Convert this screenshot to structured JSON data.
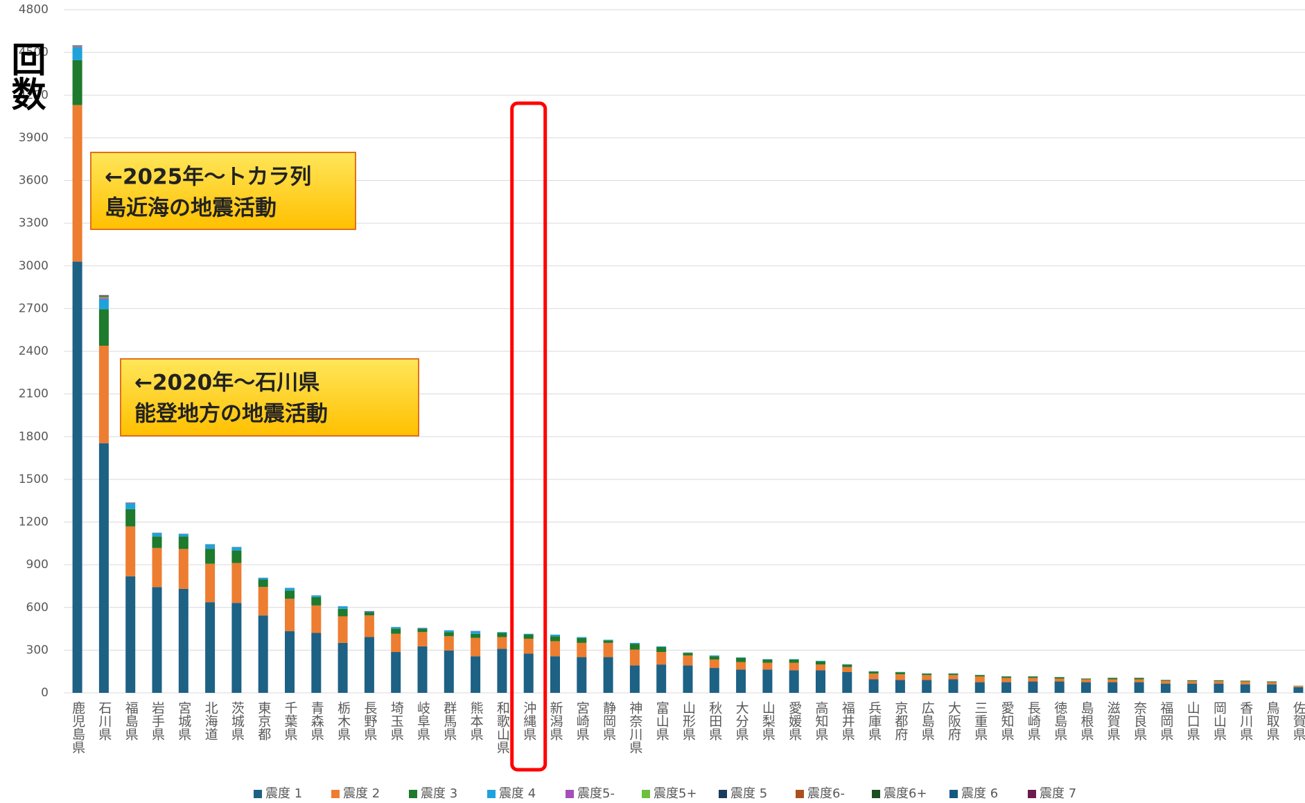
{
  "chart_data": {
    "type": "stacked_bar",
    "y_label": "回数",
    "annotations": [
      {
        "lines": [
          "←2025年～トカラ列",
          "島近海の地震活動"
        ]
      },
      {
        "lines": [
          "←2020年～石川県",
          "能登地方の地震活動"
        ]
      }
    ],
    "categories": [
      "鹿児島県",
      "石川県",
      "福島県",
      "岩手県",
      "宮城県",
      "北海道",
      "茨城県",
      "東京都",
      "千葉県",
      "青森県",
      "栃木県",
      "長野県",
      "埼玉県",
      "岐阜県",
      "群馬県",
      "熊本県",
      "和歌山県",
      "沖縄県",
      "新潟県",
      "宮崎県",
      "静岡県",
      "神奈川県",
      "富山県",
      "山形県",
      "秋田県",
      "大分県",
      "山梨県",
      "愛媛県",
      "高知県",
      "福井県",
      "兵庫県",
      "京都府",
      "広島県",
      "大阪府",
      "三重県",
      "愛知県",
      "長崎県",
      "徳島県",
      "島根県",
      "滋賀県",
      "奈良県",
      "福岡県",
      "山口県",
      "岡山県",
      "香川県",
      "鳥取県",
      "佐賀県"
    ],
    "series": [
      {
        "name": "震度 1",
        "color": "#1d6185",
        "values": [
          3030,
          1754,
          819,
          743,
          731,
          637,
          632,
          544,
          433,
          421,
          351,
          392,
          287,
          327,
          298,
          257,
          310,
          275,
          257,
          251,
          251,
          193,
          199,
          193,
          175,
          164,
          164,
          158,
          158,
          146,
          95,
          90,
          90,
          95,
          75,
          75,
          80,
          80,
          75,
          75,
          75,
          65,
          65,
          65,
          60,
          60,
          40
        ]
      },
      {
        "name": "震度 2",
        "color": "#ed7d31",
        "values": [
          1100,
          685,
          350,
          275,
          280,
          270,
          280,
          200,
          228,
          193,
          187,
          152,
          128,
          100,
          100,
          129,
          82,
          105,
          106,
          100,
          100,
          111,
          88,
          70,
          59,
          52,
          47,
          53,
          41,
          35,
          40,
          40,
          35,
          30,
          40,
          30,
          25,
          20,
          20,
          20,
          20,
          20,
          18,
          18,
          20,
          15,
          8
        ]
      },
      {
        "name": "震度 3",
        "color": "#1e7a2c",
        "values": [
          315,
          257,
          122,
          81,
          87,
          105,
          88,
          52,
          58,
          59,
          52,
          23,
          35,
          23,
          29,
          29,
          29,
          29,
          35,
          35,
          17,
          41,
          35,
          18,
          23,
          30,
          23,
          23,
          23,
          18,
          15,
          15,
          10,
          10,
          10,
          10,
          10,
          10,
          5,
          10,
          10,
          5,
          5,
          5,
          5,
          5,
          2
        ]
      },
      {
        "name": "震度 4",
        "color": "#1fa2dc",
        "values": [
          90,
          70,
          40,
          24,
          18,
          30,
          23,
          12,
          18,
          11,
          18,
          5,
          12,
          5,
          12,
          18,
          6,
          6,
          11,
          6,
          5,
          6,
          5,
          3,
          6,
          3,
          3,
          3,
          3,
          2,
          2,
          2,
          2,
          2,
          1,
          1,
          1,
          1,
          1,
          1,
          1,
          1,
          1,
          1,
          1,
          1,
          0
        ]
      },
      {
        "name": "震度5-",
        "color": "#a64fb8",
        "values": [
          6,
          8,
          3,
          2,
          2,
          2,
          2,
          1,
          1,
          1,
          1,
          3,
          1,
          2,
          1,
          2,
          0,
          0,
          0,
          0,
          0,
          0,
          0,
          0,
          0,
          0,
          0,
          0,
          0,
          0,
          0,
          0,
          0,
          0,
          0,
          0,
          0,
          0,
          0,
          0,
          0,
          0,
          0,
          0,
          0,
          0,
          0
        ]
      },
      {
        "name": "震度5+",
        "color": "#6fbf3f",
        "values": [
          4,
          7,
          2,
          1,
          1,
          1,
          1,
          0,
          0,
          0,
          0,
          0,
          0,
          0,
          0,
          0,
          0,
          0,
          0,
          0,
          0,
          0,
          0,
          0,
          0,
          0,
          0,
          0,
          0,
          0,
          0,
          0,
          0,
          0,
          0,
          0,
          0,
          0,
          0,
          0,
          0,
          0,
          0,
          0,
          0,
          0,
          0
        ]
      },
      {
        "name": "震度 5",
        "color": "#1b3a5e",
        "values": [
          2,
          3,
          1,
          0,
          0,
          0,
          0,
          0,
          0,
          0,
          0,
          0,
          0,
          0,
          0,
          0,
          0,
          0,
          0,
          0,
          0,
          0,
          0,
          0,
          0,
          0,
          0,
          0,
          0,
          0,
          0,
          0,
          0,
          0,
          0,
          0,
          0,
          0,
          0,
          0,
          0,
          0,
          0,
          0,
          0,
          0,
          0
        ]
      },
      {
        "name": "震度6-",
        "color": "#a9511d",
        "values": [
          1,
          4,
          1,
          0,
          0,
          0,
          0,
          0,
          0,
          0,
          0,
          0,
          0,
          0,
          0,
          0,
          0,
          0,
          0,
          0,
          0,
          0,
          0,
          0,
          0,
          0,
          0,
          0,
          0,
          0,
          0,
          0,
          0,
          0,
          0,
          0,
          0,
          0,
          0,
          0,
          0,
          0,
          0,
          0,
          0,
          0,
          0
        ]
      },
      {
        "name": "震度6+",
        "color": "#1c4e22",
        "values": [
          1,
          3,
          0,
          0,
          0,
          0,
          0,
          0,
          0,
          0,
          0,
          0,
          0,
          0,
          0,
          0,
          0,
          0,
          0,
          0,
          0,
          0,
          0,
          0,
          0,
          0,
          0,
          0,
          0,
          0,
          0,
          0,
          0,
          0,
          0,
          0,
          0,
          0,
          0,
          0,
          0,
          0,
          0,
          0,
          0,
          0,
          0
        ]
      },
      {
        "name": "震度 6",
        "color": "#13597f",
        "values": [
          0,
          2,
          0,
          0,
          0,
          0,
          0,
          0,
          0,
          0,
          0,
          0,
          0,
          0,
          0,
          0,
          0,
          0,
          0,
          0,
          0,
          0,
          0,
          0,
          0,
          0,
          0,
          0,
          0,
          0,
          0,
          0,
          0,
          0,
          0,
          0,
          0,
          0,
          0,
          0,
          0,
          0,
          0,
          0,
          0,
          0,
          0
        ]
      },
      {
        "name": "震度 7",
        "color": "#6b1b4c",
        "values": [
          1,
          2,
          0,
          0,
          0,
          0,
          0,
          0,
          0,
          0,
          0,
          0,
          0,
          0,
          0,
          0,
          0,
          0,
          0,
          0,
          0,
          0,
          0,
          0,
          0,
          0,
          0,
          0,
          0,
          0,
          0,
          0,
          0,
          0,
          0,
          0,
          0,
          0,
          0,
          0,
          0,
          0,
          0,
          0,
          0,
          0,
          0
        ]
      }
    ],
    "ylim": [
      0,
      4800
    ],
    "yticks": [
      0,
      300,
      600,
      900,
      1200,
      1500,
      1800,
      2100,
      2400,
      2700,
      3000,
      3300,
      3600,
      3900,
      4200,
      4500,
      4800
    ],
    "grid": true,
    "legend": "bottom"
  }
}
